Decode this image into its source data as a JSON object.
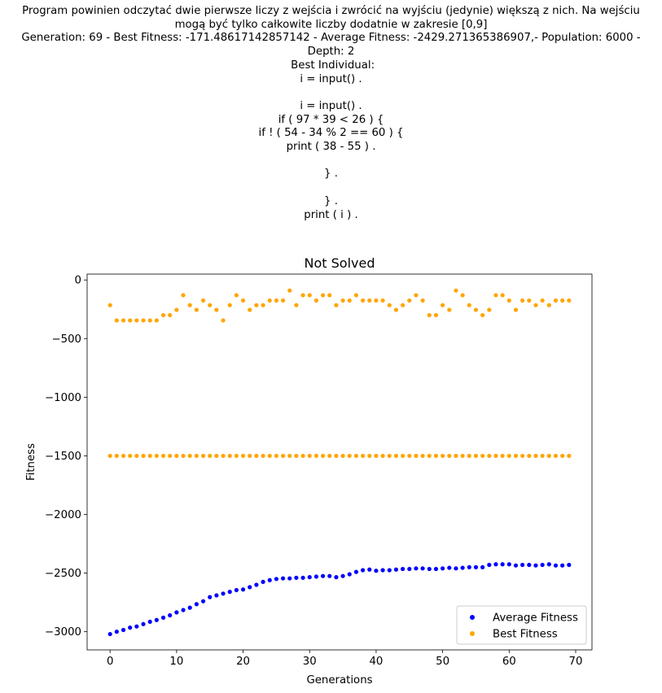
{
  "header_lines": [
    "Program powinien odczytać dwie pierwsze liczy z wejścia i zwrócić na wyjściu (jedynie) większą z nich. Na wejściu",
    "mogą być tylko całkowite liczby dodatnie w zakresie [0,9]",
    "Generation: 69 - Best Fitness: -171.48617142857142 - Average Fitness: -2429.271365386907,- Population: 6000 -",
    "Depth: 2",
    " Best Individual:",
    "i = input() .",
    "",
    "i = input() .",
    "if ( 97 * 39 < 26 ) {",
    "if ! ( 54 - 34 % 2 == 60 ) {",
    "print ( 38 - 55 ) .",
    "",
    "} .",
    "",
    "} .",
    "print ( i ) ."
  ],
  "chart_data": {
    "type": "scatter",
    "title": "Not Solved",
    "xlabel": "Generations",
    "ylabel": "Fitness",
    "xlim": [
      -3.45,
      72.45
    ],
    "ylim": [
      -3155,
      50
    ],
    "xticks": [
      0,
      10,
      20,
      30,
      40,
      50,
      60,
      70
    ],
    "yticks": [
      0,
      -500,
      -1000,
      -1500,
      -2000,
      -2500,
      -3000
    ],
    "legend": {
      "placement": "lower-right"
    },
    "series": [
      {
        "name": "Average Fitness",
        "color": "#0000ff",
        "x": [
          0,
          1,
          2,
          3,
          4,
          5,
          6,
          7,
          8,
          9,
          10,
          11,
          12,
          13,
          14,
          15,
          16,
          17,
          18,
          19,
          20,
          21,
          22,
          23,
          24,
          25,
          26,
          27,
          28,
          29,
          30,
          31,
          32,
          33,
          34,
          35,
          36,
          37,
          38,
          39,
          40,
          41,
          42,
          43,
          44,
          45,
          46,
          47,
          48,
          49,
          50,
          51,
          52,
          53,
          54,
          55,
          56,
          57,
          58,
          59,
          60,
          61,
          62,
          63,
          64,
          65,
          66,
          67,
          68,
          69
        ],
        "y": [
          -3020,
          -3000,
          -2985,
          -2965,
          -2955,
          -2935,
          -2915,
          -2900,
          -2880,
          -2860,
          -2835,
          -2815,
          -2795,
          -2765,
          -2740,
          -2705,
          -2690,
          -2675,
          -2660,
          -2645,
          -2640,
          -2620,
          -2600,
          -2575,
          -2560,
          -2550,
          -2545,
          -2545,
          -2540,
          -2540,
          -2535,
          -2530,
          -2525,
          -2525,
          -2535,
          -2525,
          -2510,
          -2490,
          -2475,
          -2470,
          -2480,
          -2475,
          -2475,
          -2470,
          -2465,
          -2465,
          -2460,
          -2460,
          -2465,
          -2465,
          -2460,
          -2455,
          -2460,
          -2455,
          -2450,
          -2450,
          -2450,
          -2430,
          -2425,
          -2425,
          -2425,
          -2435,
          -2430,
          -2430,
          -2435,
          -2430,
          -2425,
          -2435,
          -2435,
          -2430
        ]
      },
      {
        "name": "Best Fitness",
        "color": "#ffa500",
        "x": [
          0,
          0,
          1,
          1,
          2,
          2,
          3,
          3,
          4,
          4,
          5,
          5,
          6,
          6,
          7,
          7,
          8,
          8,
          9,
          9,
          10,
          10,
          11,
          11,
          12,
          12,
          13,
          13,
          14,
          14,
          15,
          15,
          16,
          16,
          17,
          17,
          18,
          18,
          19,
          19,
          20,
          20,
          21,
          21,
          22,
          22,
          23,
          23,
          24,
          24,
          25,
          25,
          26,
          26,
          27,
          27,
          28,
          28,
          29,
          29,
          30,
          30,
          31,
          31,
          32,
          32,
          33,
          33,
          34,
          34,
          35,
          35,
          36,
          36,
          37,
          37,
          38,
          38,
          39,
          39,
          40,
          40,
          41,
          41,
          42,
          42,
          43,
          43,
          44,
          44,
          45,
          45,
          46,
          46,
          47,
          47,
          48,
          48,
          49,
          49,
          50,
          50,
          51,
          51,
          52,
          52,
          53,
          53,
          54,
          54,
          55,
          55,
          56,
          56,
          57,
          57,
          58,
          58,
          59,
          59,
          60,
          60,
          61,
          61,
          62,
          62,
          63,
          63,
          64,
          64,
          65,
          65,
          66,
          66,
          67,
          67,
          68,
          68,
          69,
          69
        ],
        "y": [
          -215,
          -1500,
          -345,
          -1500,
          -345,
          -1500,
          -345,
          -1500,
          -345,
          -1500,
          -345,
          -1500,
          -345,
          -1500,
          -345,
          -1500,
          -300,
          -1500,
          -300,
          -1500,
          -255,
          -1500,
          -130,
          -1500,
          -215,
          -1500,
          -255,
          -1500,
          -175,
          -1500,
          -215,
          -1500,
          -255,
          -1500,
          -345,
          -1500,
          -215,
          -1500,
          -130,
          -1500,
          -175,
          -1500,
          -255,
          -1500,
          -215,
          -1500,
          -215,
          -1500,
          -175,
          -1500,
          -175,
          -1500,
          -175,
          -1500,
          -90,
          -1500,
          -215,
          -1500,
          -130,
          -1500,
          -130,
          -1500,
          -175,
          -1500,
          -130,
          -1500,
          -130,
          -1500,
          -215,
          -1500,
          -175,
          -1500,
          -175,
          -1500,
          -130,
          -1500,
          -175,
          -1500,
          -175,
          -1500,
          -175,
          -1500,
          -175,
          -1500,
          -215,
          -1500,
          -255,
          -1500,
          -215,
          -1500,
          -175,
          -1500,
          -130,
          -1500,
          -175,
          -1500,
          -300,
          -1500,
          -300,
          -1500,
          -215,
          -1500,
          -255,
          -1500,
          -90,
          -1500,
          -130,
          -1500,
          -215,
          -1500,
          -255,
          -1500,
          -300,
          -1500,
          -255,
          -1500,
          -130,
          -1500,
          -130,
          -1500,
          -175,
          -1500,
          -255,
          -1500,
          -175,
          -1500,
          -175,
          -1500,
          -215,
          -1500,
          -175,
          -1500,
          -215,
          -1500,
          -175,
          -1500,
          -175,
          -1500,
          -175,
          -1500
        ]
      }
    ]
  }
}
